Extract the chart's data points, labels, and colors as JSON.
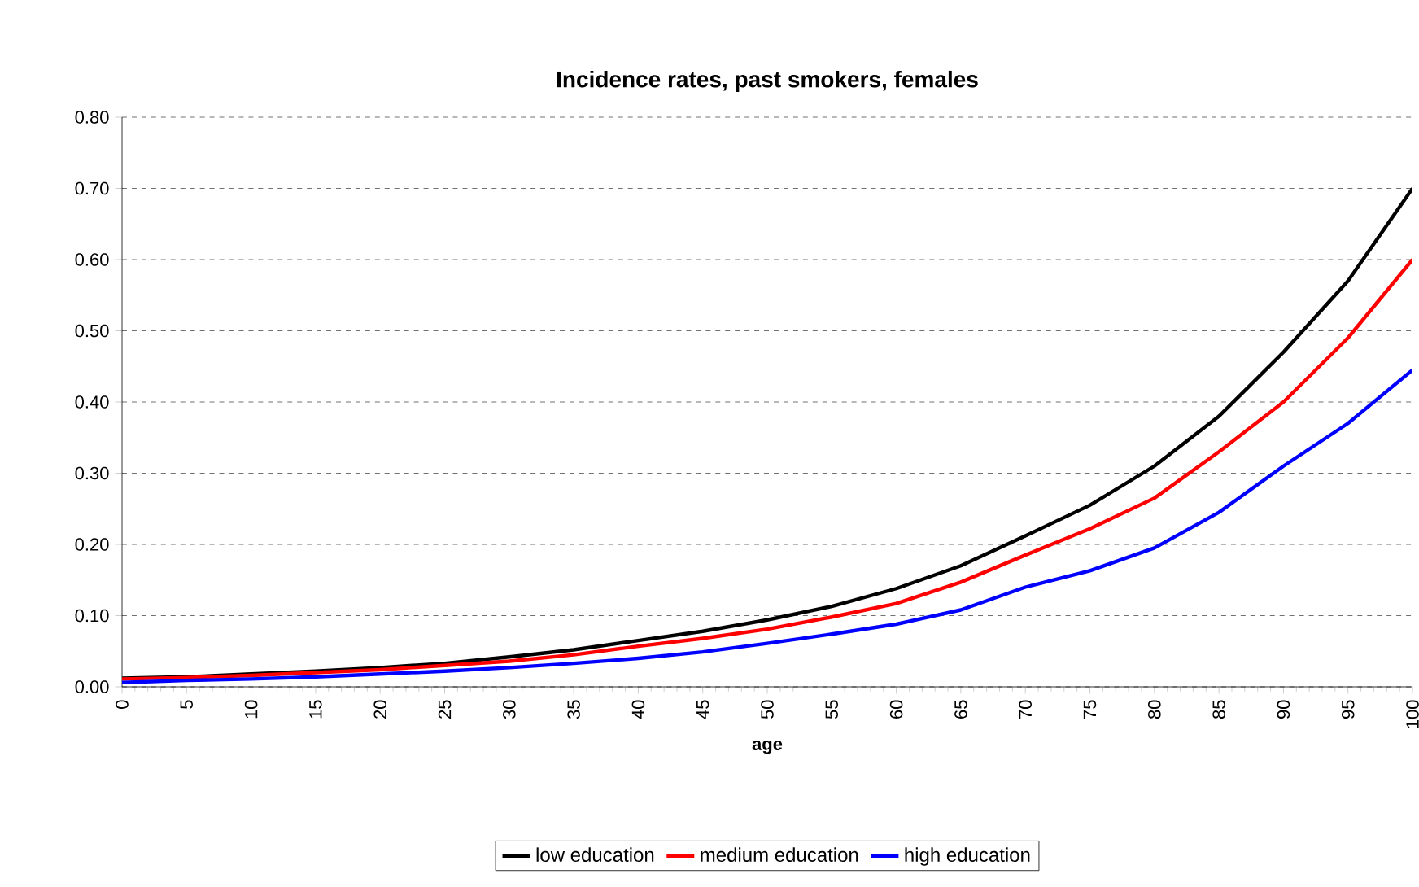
{
  "chart_data": {
    "type": "line",
    "title": "Incidence rates, past smokers, females",
    "xlabel": "age",
    "x": [
      0,
      5,
      10,
      15,
      20,
      25,
      30,
      35,
      40,
      45,
      50,
      55,
      60,
      65,
      70,
      75,
      80,
      85,
      90,
      95,
      100
    ],
    "series": [
      {
        "name": "low education",
        "color": "#000000",
        "values": [
          0.012,
          0.014,
          0.018,
          0.022,
          0.027,
          0.033,
          0.042,
          0.052,
          0.065,
          0.078,
          0.094,
          0.113,
          0.138,
          0.17,
          0.212,
          0.255,
          0.31,
          0.38,
          0.47,
          0.57,
          0.7
        ]
      },
      {
        "name": "medium education",
        "color": "#ff0000",
        "values": [
          0.011,
          0.013,
          0.016,
          0.02,
          0.024,
          0.03,
          0.036,
          0.045,
          0.057,
          0.068,
          0.081,
          0.098,
          0.117,
          0.147,
          0.185,
          0.222,
          0.265,
          0.33,
          0.4,
          0.49,
          0.6
        ]
      },
      {
        "name": "high education",
        "color": "#0000ff",
        "values": [
          0.006,
          0.009,
          0.011,
          0.014,
          0.018,
          0.022,
          0.027,
          0.033,
          0.04,
          0.049,
          0.061,
          0.074,
          0.088,
          0.108,
          0.14,
          0.163,
          0.195,
          0.245,
          0.31,
          0.37,
          0.445
        ]
      }
    ],
    "xlim": [
      0,
      100
    ],
    "xticks": [
      0,
      5,
      10,
      15,
      20,
      25,
      30,
      35,
      40,
      45,
      50,
      55,
      60,
      65,
      70,
      75,
      80,
      85,
      90,
      95,
      100
    ],
    "ylim": [
      0,
      0.8
    ],
    "yticks": [
      {
        "value": 0,
        "label": "0.00"
      },
      {
        "value": 0.1,
        "label": "0.10"
      },
      {
        "value": 0.2,
        "label": "0.20"
      },
      {
        "value": 0.3,
        "label": "0.30"
      },
      {
        "value": 0.4,
        "label": "0.40"
      },
      {
        "value": 0.5,
        "label": "0.50"
      },
      {
        "value": 0.6,
        "label": "0.60"
      },
      {
        "value": 0.7,
        "label": "0.70"
      },
      {
        "value": 0.8,
        "label": "0.80"
      }
    ],
    "grid": "y",
    "legend": "bottom",
    "marker": "none",
    "line_style": "solid"
  }
}
